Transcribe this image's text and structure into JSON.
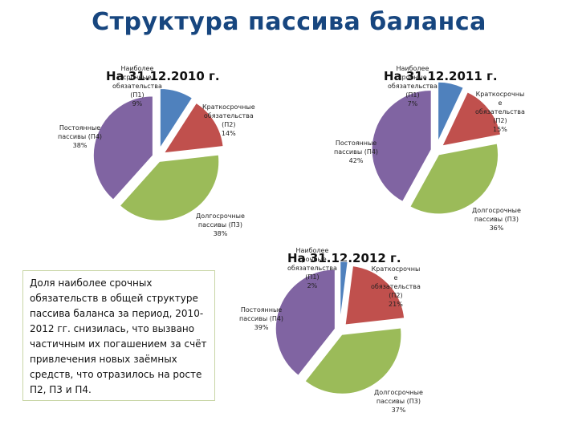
{
  "page_title": "Структура пассива баланса",
  "note_text": "Доля наиболее срочных обязательств в общей структуре пассива баланса за период, 2010-2012 гг. снизилась, что вызвано частичным их погашением за счёт привлечения новых заёмных средств, что отразилось на росте П2, П3 и П4.",
  "chart_data": [
    {
      "type": "pie",
      "title": "На 31.12.2010 г.",
      "categories": [
        "Наиболее срочные обязательства (П1)",
        "Краткосрочные обязательства (П2)",
        "Долгосрочные пассивы (П3)",
        "Постоянные пассивы (П4)"
      ],
      "values": [
        9,
        14,
        38,
        38
      ],
      "labels": [
        [
          "Наиболее",
          "срочные",
          "обязательства",
          "(П1)",
          "9%"
        ],
        [
          "Краткосрочные",
          "обязательства",
          "(П2)",
          "14%"
        ],
        [
          "Долгосрочные",
          "пассивы (П3)",
          "38%"
        ],
        [
          "Постоянные",
          "пассивы (П4)",
          "38%"
        ]
      ],
      "colors": [
        "#4f81bd",
        "#c0504d",
        "#9bbb59",
        "#8064a2"
      ]
    },
    {
      "type": "pie",
      "title": "На 31.12.2011 г.",
      "categories": [
        "Наиболее срочные обязательства (П1)",
        "Краткосрочные обязательства (П2)",
        "Долгосрочные пассивы (П3)",
        "Постоянные пассивы (П4)"
      ],
      "values": [
        7,
        15,
        36,
        42
      ],
      "labels": [
        [
          "Наиболее",
          "срочные",
          "обязательства",
          "(П1)",
          "7%"
        ],
        [
          "Краткосрочны",
          "е",
          "обязательства",
          "(П2)",
          "15%"
        ],
        [
          "Долгосрочные",
          "пассивы (П3)",
          "36%"
        ],
        [
          "Постоянные",
          "пассивы (П4)",
          "42%"
        ]
      ],
      "colors": [
        "#4f81bd",
        "#c0504d",
        "#9bbb59",
        "#8064a2"
      ]
    },
    {
      "type": "pie",
      "title": "На 31.12.2012 г.",
      "categories": [
        "Наиболее срочные обязательства (П1)",
        "Краткосрочные обязательства (П2)",
        "Долгосрочные пассивы (П3)",
        "Постоянные пассивы (П4)"
      ],
      "values": [
        2,
        21,
        37,
        39
      ],
      "labels": [
        [
          "Наиболее",
          "срочные",
          "обязательства",
          "(П1)",
          "2%"
        ],
        [
          "Краткосрочны",
          "е",
          "обязательства",
          "(П2)",
          "21%"
        ],
        [
          "Долгосрочные",
          "пассивы (П3)",
          "37%"
        ],
        [
          "Постоянные",
          "пассивы (П4)",
          "39%"
        ]
      ],
      "colors": [
        "#4f81bd",
        "#c0504d",
        "#9bbb59",
        "#8064a2"
      ]
    }
  ]
}
